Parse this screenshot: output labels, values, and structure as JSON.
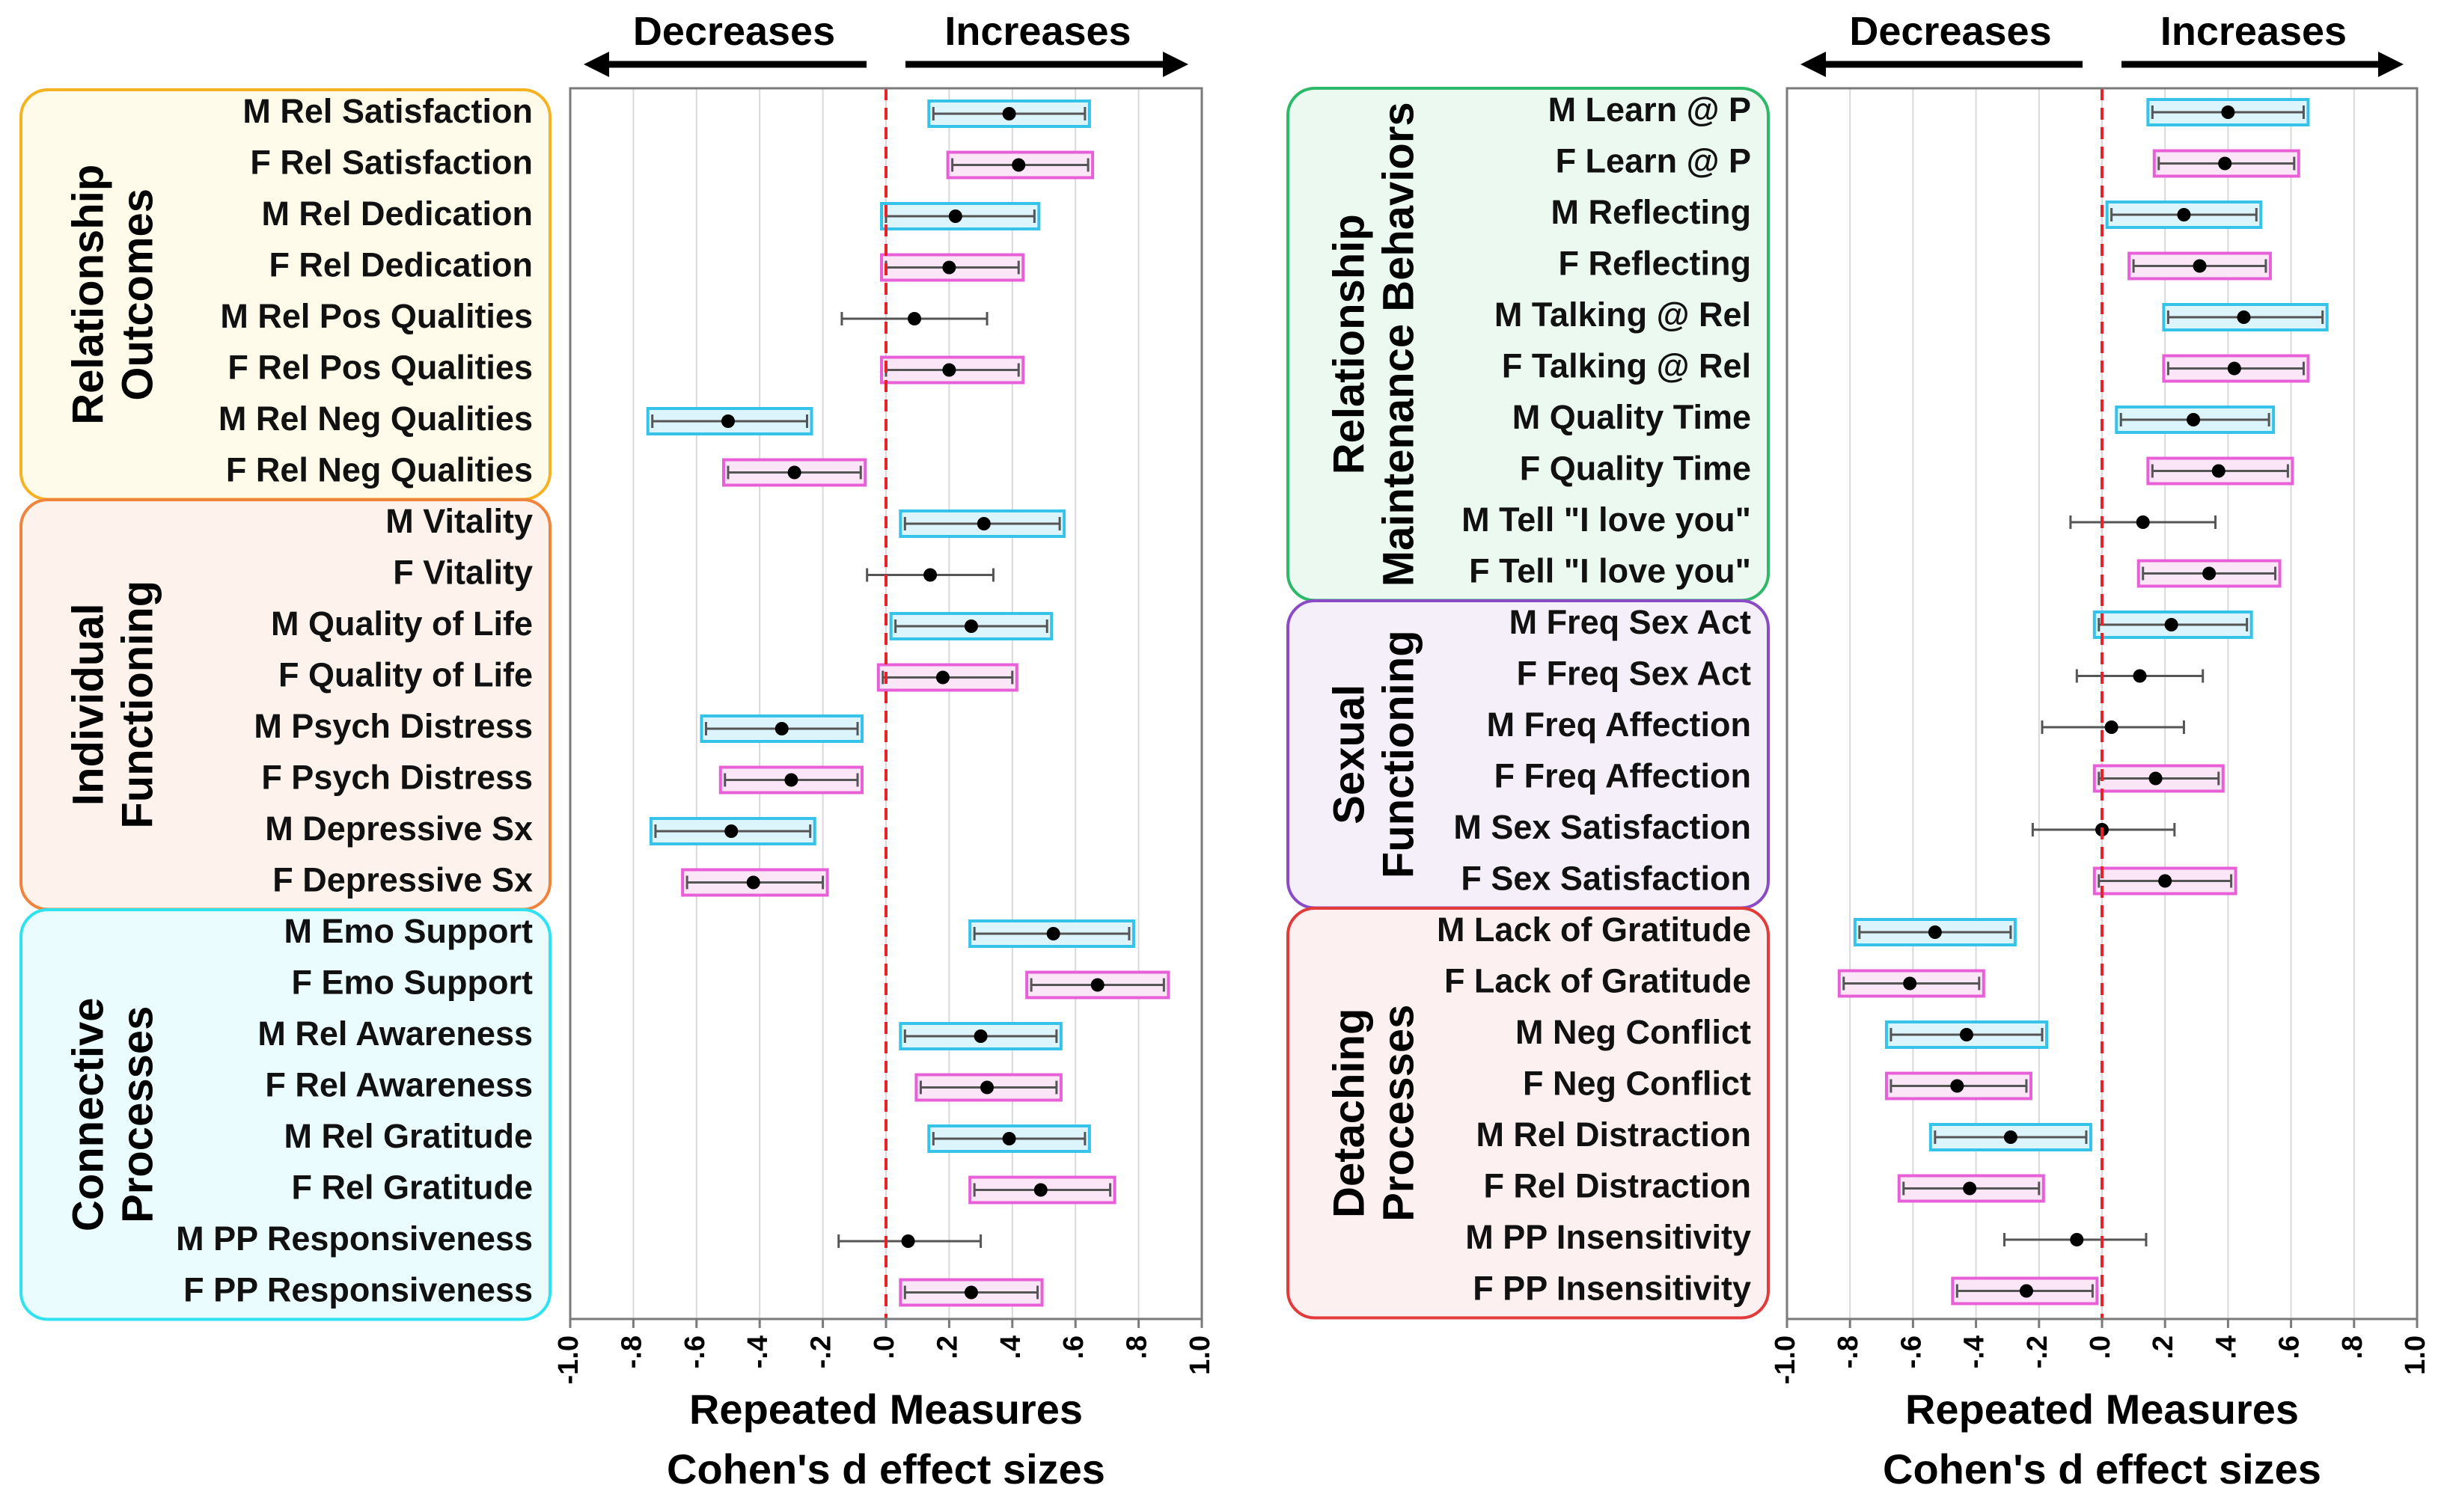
{
  "chart_data": [
    {
      "type": "forest",
      "xlabel": "Repeated Measures",
      "xlabel_line2": "Cohen's d effect sizes",
      "xlim": [
        -1.0,
        1.0
      ],
      "xticks": [
        "-1.0",
        "-.8",
        "-.6",
        "-.4",
        "-.2",
        ".0",
        ".2",
        ".4",
        ".6",
        ".8",
        "1.0"
      ],
      "direction_labels": {
        "left": "Decreases",
        "right": "Increases"
      },
      "reference_line": 0,
      "groups": [
        {
          "name": "Relationship Outcomes",
          "lines": [
            "Relationship",
            "Outcomes"
          ],
          "color": "#f5b324",
          "fill": "#fffbea",
          "rows": [
            0,
            7
          ]
        },
        {
          "name": "Individual Functioning",
          "lines": [
            "Individual",
            "Functioning"
          ],
          "color": "#f0843c",
          "fill": "#fdf3ec",
          "rows": [
            8,
            15
          ]
        },
        {
          "name": "Connective Processes",
          "lines": [
            "Connective",
            "Processes"
          ],
          "color": "#2ee2f2",
          "fill": "#eafcfe",
          "rows": [
            16,
            23
          ]
        }
      ],
      "rows": [
        {
          "label": "M Rel Satisfaction",
          "d": 0.39,
          "lo": 0.15,
          "hi": 0.63,
          "sex": "M",
          "sig": true
        },
        {
          "label": "F Rel Satisfaction",
          "d": 0.42,
          "lo": 0.21,
          "hi": 0.64,
          "sex": "F",
          "sig": true
        },
        {
          "label": "M Rel Dedication",
          "d": 0.22,
          "lo": 0.0,
          "hi": 0.47,
          "sex": "M",
          "sig": true
        },
        {
          "label": "F Rel Dedication",
          "d": 0.2,
          "lo": 0.0,
          "hi": 0.42,
          "sex": "F",
          "sig": true
        },
        {
          "label": "M Rel Pos Qualities",
          "d": 0.09,
          "lo": -0.14,
          "hi": 0.32,
          "sex": "M",
          "sig": false
        },
        {
          "label": "F Rel Pos Qualities",
          "d": 0.2,
          "lo": 0.0,
          "hi": 0.42,
          "sex": "F",
          "sig": true
        },
        {
          "label": "M Rel Neg Qualities",
          "d": -0.5,
          "lo": -0.74,
          "hi": -0.25,
          "sex": "M",
          "sig": true
        },
        {
          "label": "F Rel Neg Qualities",
          "d": -0.29,
          "lo": -0.5,
          "hi": -0.08,
          "sex": "F",
          "sig": true
        },
        {
          "label": "M Vitality",
          "d": 0.31,
          "lo": 0.06,
          "hi": 0.55,
          "sex": "M",
          "sig": true
        },
        {
          "label": "F Vitality",
          "d": 0.14,
          "lo": -0.06,
          "hi": 0.34,
          "sex": "F",
          "sig": false
        },
        {
          "label": "M Quality of Life",
          "d": 0.27,
          "lo": 0.03,
          "hi": 0.51,
          "sex": "M",
          "sig": true
        },
        {
          "label": "F Quality of Life",
          "d": 0.18,
          "lo": -0.01,
          "hi": 0.4,
          "sex": "F",
          "sig": true
        },
        {
          "label": "M Psych Distress",
          "d": -0.33,
          "lo": -0.57,
          "hi": -0.09,
          "sex": "M",
          "sig": true
        },
        {
          "label": "F Psych Distress",
          "d": -0.3,
          "lo": -0.51,
          "hi": -0.09,
          "sex": "F",
          "sig": true
        },
        {
          "label": "M Depressive Sx",
          "d": -0.49,
          "lo": -0.73,
          "hi": -0.24,
          "sex": "M",
          "sig": true
        },
        {
          "label": "F Depressive Sx",
          "d": -0.42,
          "lo": -0.63,
          "hi": -0.2,
          "sex": "F",
          "sig": true
        },
        {
          "label": "M Emo Support",
          "d": 0.53,
          "lo": 0.28,
          "hi": 0.77,
          "sex": "M",
          "sig": true
        },
        {
          "label": "F Emo Support",
          "d": 0.67,
          "lo": 0.46,
          "hi": 0.88,
          "sex": "F",
          "sig": true
        },
        {
          "label": "M Rel Awareness",
          "d": 0.3,
          "lo": 0.06,
          "hi": 0.54,
          "sex": "M",
          "sig": true
        },
        {
          "label": "F Rel Awareness",
          "d": 0.32,
          "lo": 0.11,
          "hi": 0.54,
          "sex": "F",
          "sig": true
        },
        {
          "label": "M Rel Gratitude",
          "d": 0.39,
          "lo": 0.15,
          "hi": 0.63,
          "sex": "M",
          "sig": true
        },
        {
          "label": "F Rel Gratitude",
          "d": 0.49,
          "lo": 0.28,
          "hi": 0.71,
          "sex": "F",
          "sig": true
        },
        {
          "label": "M PP Responsiveness",
          "d": 0.07,
          "lo": -0.15,
          "hi": 0.3,
          "sex": "M",
          "sig": false
        },
        {
          "label": "F PP Responsiveness",
          "d": 0.27,
          "lo": 0.06,
          "hi": 0.48,
          "sex": "F",
          "sig": true
        }
      ]
    },
    {
      "type": "forest",
      "xlabel": "Repeated Measures",
      "xlabel_line2": "Cohen's d effect sizes",
      "xlim": [
        -1.0,
        1.0
      ],
      "xticks": [
        "-1.0",
        "-.8",
        "-.6",
        "-.4",
        "-.2",
        ".0",
        ".2",
        ".4",
        ".6",
        ".8",
        "1.0"
      ],
      "direction_labels": {
        "left": "Decreases",
        "right": "Increases"
      },
      "reference_line": 0,
      "groups": [
        {
          "name": "Relationship Maintenance Behaviors",
          "lines": [
            "Relationship",
            "Maintenance Behaviors"
          ],
          "color": "#2db86a",
          "fill": "#ecf9f1",
          "rows": [
            0,
            9
          ]
        },
        {
          "name": "Sexual Functioning",
          "lines": [
            "Sexual",
            "Functioning"
          ],
          "color": "#8a4cc4",
          "fill": "#f5effa",
          "rows": [
            10,
            15
          ]
        },
        {
          "name": "Detaching Processes",
          "lines": [
            "Detaching",
            "Processes"
          ],
          "color": "#e23b3b",
          "fill": "#fdf0f0",
          "rows": [
            16,
            23
          ]
        }
      ],
      "rows": [
        {
          "label": "M Learn @ P",
          "d": 0.4,
          "lo": 0.16,
          "hi": 0.64,
          "sex": "M",
          "sig": true
        },
        {
          "label": "F Learn @ P",
          "d": 0.39,
          "lo": 0.18,
          "hi": 0.61,
          "sex": "F",
          "sig": true
        },
        {
          "label": "M Reflecting",
          "d": 0.26,
          "lo": 0.03,
          "hi": 0.49,
          "sex": "M",
          "sig": true
        },
        {
          "label": "F Reflecting",
          "d": 0.31,
          "lo": 0.1,
          "hi": 0.52,
          "sex": "F",
          "sig": true
        },
        {
          "label": "M Talking @ Rel",
          "d": 0.45,
          "lo": 0.21,
          "hi": 0.7,
          "sex": "M",
          "sig": true
        },
        {
          "label": "F Talking @ Rel",
          "d": 0.42,
          "lo": 0.21,
          "hi": 0.64,
          "sex": "F",
          "sig": true
        },
        {
          "label": "M Quality Time",
          "d": 0.29,
          "lo": 0.06,
          "hi": 0.53,
          "sex": "M",
          "sig": true
        },
        {
          "label": "F Quality Time",
          "d": 0.37,
          "lo": 0.16,
          "hi": 0.59,
          "sex": "F",
          "sig": true
        },
        {
          "label": "M Tell \"I love you\"",
          "d": 0.13,
          "lo": -0.1,
          "hi": 0.36,
          "sex": "M",
          "sig": false
        },
        {
          "label": "F Tell \"I love you\"",
          "d": 0.34,
          "lo": 0.13,
          "hi": 0.55,
          "sex": "F",
          "sig": true
        },
        {
          "label": "M Freq Sex Act",
          "d": 0.22,
          "lo": -0.01,
          "hi": 0.46,
          "sex": "M",
          "sig": true
        },
        {
          "label": "F Freq Sex Act",
          "d": 0.12,
          "lo": -0.08,
          "hi": 0.32,
          "sex": "F",
          "sig": false
        },
        {
          "label": "M Freq Affection",
          "d": 0.03,
          "lo": -0.19,
          "hi": 0.26,
          "sex": "M",
          "sig": false
        },
        {
          "label": "F Freq Affection",
          "d": 0.17,
          "lo": -0.01,
          "hi": 0.37,
          "sex": "F",
          "sig": true
        },
        {
          "label": "M Sex Satisfaction",
          "d": 0.0,
          "lo": -0.22,
          "hi": 0.23,
          "sex": "M",
          "sig": false
        },
        {
          "label": "F Sex Satisfaction",
          "d": 0.2,
          "lo": -0.01,
          "hi": 0.41,
          "sex": "F",
          "sig": true
        },
        {
          "label": "M Lack of Gratitude",
          "d": -0.53,
          "lo": -0.77,
          "hi": -0.29,
          "sex": "M",
          "sig": true
        },
        {
          "label": "F Lack of Gratitude",
          "d": -0.61,
          "lo": -0.82,
          "hi": -0.39,
          "sex": "F",
          "sig": true
        },
        {
          "label": "M Neg Conflict",
          "d": -0.43,
          "lo": -0.67,
          "hi": -0.19,
          "sex": "M",
          "sig": true
        },
        {
          "label": "F Neg Conflict",
          "d": -0.46,
          "lo": -0.67,
          "hi": -0.24,
          "sex": "F",
          "sig": true
        },
        {
          "label": "M Rel Distraction",
          "d": -0.29,
          "lo": -0.53,
          "hi": -0.05,
          "sex": "M",
          "sig": true
        },
        {
          "label": "F Rel Distraction",
          "d": -0.42,
          "lo": -0.63,
          "hi": -0.2,
          "sex": "F",
          "sig": true
        },
        {
          "label": "M PP Insensitivity",
          "d": -0.08,
          "lo": -0.31,
          "hi": 0.14,
          "sex": "M",
          "sig": false
        },
        {
          "label": "F PP Insensitivity",
          "d": -0.24,
          "lo": -0.46,
          "hi": -0.03,
          "sex": "F",
          "sig": true
        }
      ]
    }
  ],
  "colors": {
    "male_box": "#35c3ea",
    "male_fill": "#dcf4fb",
    "female_box": "#e860d8",
    "female_fill": "#fbe6f8",
    "reference_line": "#e8222a",
    "whisker": "#555555",
    "point": "#000000",
    "gridline": "#d9d9d9",
    "frame": "#7a7a7a"
  }
}
